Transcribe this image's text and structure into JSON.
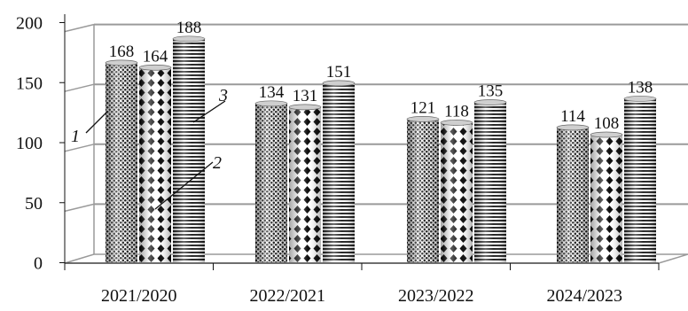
{
  "chart_data": {
    "type": "bar",
    "categories": [
      "2021/2020",
      "2022/2021",
      "2023/2022",
      "2024/2023"
    ],
    "series": [
      {
        "values": [
          168,
          134,
          121,
          114
        ],
        "pattern": "dense-dots"
      },
      {
        "values": [
          164,
          131,
          118,
          108
        ],
        "pattern": "diamond-checker"
      },
      {
        "values": [
          188,
          151,
          135,
          138
        ],
        "pattern": "horizontal-stripes"
      }
    ],
    "y_ticks": [
      "0",
      "50",
      "100",
      "150",
      "200"
    ],
    "ylim": [
      0,
      200
    ],
    "grid": true,
    "view": "3d-cylinder",
    "callouts": [
      "1",
      "2",
      "3"
    ],
    "colors": {
      "ink": "#111111",
      "grid": "#9a9a9a",
      "background": "#ffffff"
    }
  }
}
